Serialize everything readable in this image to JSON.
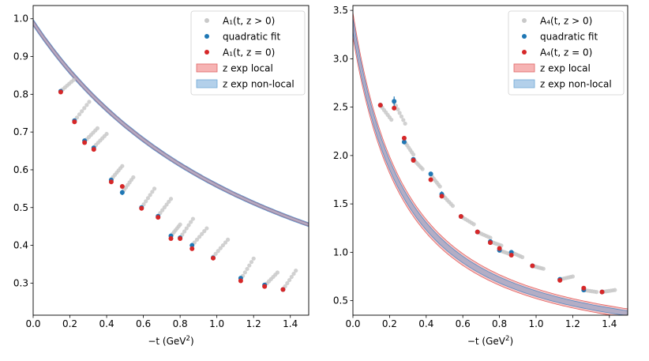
{
  "chart_data": [
    {
      "type": "scatter",
      "xlabel": "−t (GeV²)",
      "xlabel_main": "−t (GeV",
      "xlabel_sup": "2",
      "xlabel_tail": ")",
      "xlim": [
        0.0,
        1.5
      ],
      "ylim": [
        0.215,
        1.035
      ],
      "xticks": [
        "0.0",
        "0.2",
        "0.4",
        "0.6",
        "0.8",
        "1.0",
        "1.2",
        "1.4"
      ],
      "yticks": [
        "0.3",
        "0.4",
        "0.5",
        "0.6",
        "0.7",
        "0.8",
        "0.9",
        "1.0"
      ],
      "legend_position": "top-right",
      "legend": [
        {
          "label": "A₁(t, z > 0)",
          "kind": "marker",
          "color": "#c8c8c8"
        },
        {
          "label": "quadratic fit",
          "kind": "marker",
          "color": "#1f77b4"
        },
        {
          "label": "A₁(t, z = 0)",
          "kind": "marker",
          "color": "#d62728"
        },
        {
          "label": "z exp local",
          "kind": "band",
          "color": "#f4a6a6"
        },
        {
          "label": "z exp non-local",
          "kind": "band",
          "color": "#a6c8e6"
        }
      ],
      "curve": {
        "A": 0.99,
        "M2": 1.55,
        "p": 1.15,
        "local_spread": 0.004,
        "nonlocal_spread": 0.006
      },
      "gray_chains": [
        {
          "x": 0.15,
          "y": 0.808,
          "dx": 0.07,
          "dy": 0.03
        },
        {
          "x": 0.225,
          "y": 0.73,
          "dx": 0.08,
          "dy": 0.05
        },
        {
          "x": 0.28,
          "y": 0.675,
          "dx": 0.07,
          "dy": 0.035
        },
        {
          "x": 0.33,
          "y": 0.66,
          "dx": 0.07,
          "dy": 0.035
        },
        {
          "x": 0.425,
          "y": 0.575,
          "dx": 0.06,
          "dy": 0.035
        },
        {
          "x": 0.485,
          "y": 0.54,
          "dx": 0.06,
          "dy": 0.04
        },
        {
          "x": 0.59,
          "y": 0.5,
          "dx": 0.07,
          "dy": 0.05
        },
        {
          "x": 0.68,
          "y": 0.478,
          "dx": 0.07,
          "dy": 0.045
        },
        {
          "x": 0.75,
          "y": 0.425,
          "dx": 0.05,
          "dy": 0.03
        },
        {
          "x": 0.8,
          "y": 0.42,
          "dx": 0.07,
          "dy": 0.05
        },
        {
          "x": 0.865,
          "y": 0.4,
          "dx": 0.08,
          "dy": 0.045
        },
        {
          "x": 0.98,
          "y": 0.37,
          "dx": 0.08,
          "dy": 0.045
        },
        {
          "x": 1.13,
          "y": 0.31,
          "dx": 0.07,
          "dy": 0.055
        },
        {
          "x": 1.26,
          "y": 0.293,
          "dx": 0.07,
          "dy": 0.035
        },
        {
          "x": 1.36,
          "y": 0.283,
          "dx": 0.07,
          "dy": 0.05
        }
      ],
      "blue_points": [
        {
          "x": 0.15,
          "y": 0.808,
          "err": 0.004
        },
        {
          "x": 0.225,
          "y": 0.73,
          "err": 0.006
        },
        {
          "x": 0.28,
          "y": 0.677,
          "err": 0.004
        },
        {
          "x": 0.33,
          "y": 0.658,
          "err": 0.004
        },
        {
          "x": 0.425,
          "y": 0.573,
          "err": 0.006
        },
        {
          "x": 0.485,
          "y": 0.54,
          "err": 0.007
        },
        {
          "x": 0.59,
          "y": 0.5,
          "err": 0.003
        },
        {
          "x": 0.68,
          "y": 0.477,
          "err": 0.004
        },
        {
          "x": 0.75,
          "y": 0.425,
          "err": 0.004
        },
        {
          "x": 0.8,
          "y": 0.42,
          "err": 0.004
        },
        {
          "x": 0.865,
          "y": 0.4,
          "err": 0.004
        },
        {
          "x": 0.98,
          "y": 0.367,
          "err": 0.003
        },
        {
          "x": 1.13,
          "y": 0.313,
          "err": 0.003
        },
        {
          "x": 1.26,
          "y": 0.295,
          "err": 0.003
        },
        {
          "x": 1.36,
          "y": 0.283,
          "err": 0.003
        }
      ],
      "red_points": [
        {
          "x": 0.15,
          "y": 0.806
        },
        {
          "x": 0.225,
          "y": 0.727
        },
        {
          "x": 0.28,
          "y": 0.672
        },
        {
          "x": 0.33,
          "y": 0.654
        },
        {
          "x": 0.425,
          "y": 0.568
        },
        {
          "x": 0.485,
          "y": 0.556
        },
        {
          "x": 0.59,
          "y": 0.498
        },
        {
          "x": 0.68,
          "y": 0.474
        },
        {
          "x": 0.75,
          "y": 0.418
        },
        {
          "x": 0.8,
          "y": 0.418
        },
        {
          "x": 0.865,
          "y": 0.391
        },
        {
          "x": 0.98,
          "y": 0.366
        },
        {
          "x": 1.13,
          "y": 0.306
        },
        {
          "x": 1.26,
          "y": 0.291
        },
        {
          "x": 1.36,
          "y": 0.283
        }
      ]
    },
    {
      "type": "scatter",
      "xlabel": "−t (GeV²)",
      "xlabel_main": "−t (GeV",
      "xlabel_sup": "2",
      "xlabel_tail": ")",
      "xlim": [
        0.0,
        1.5
      ],
      "ylim": [
        0.35,
        3.55
      ],
      "xticks": [
        "0.0",
        "0.2",
        "0.4",
        "0.6",
        "0.8",
        "1.0",
        "1.2",
        "1.4"
      ],
      "yticks": [
        "0.5",
        "1.0",
        "1.5",
        "2.0",
        "2.5",
        "3.0",
        "3.5"
      ],
      "legend_position": "top-right",
      "legend": [
        {
          "label": "A₄(t, z > 0)",
          "kind": "marker",
          "color": "#c8c8c8"
        },
        {
          "label": "quadratic fit",
          "kind": "marker",
          "color": "#1f77b4"
        },
        {
          "label": "A₄(t, z = 0)",
          "kind": "marker",
          "color": "#d62728"
        },
        {
          "label": "z exp local",
          "kind": "band",
          "color": "#f4a6a6"
        },
        {
          "label": "z exp non-local",
          "kind": "band",
          "color": "#a6c8e6"
        }
      ],
      "curve": {
        "A": 3.35,
        "M2": 0.42,
        "p": 1.45,
        "local_spread": 0.09,
        "nonlocal_spread": 0.05
      },
      "gray_chains": [
        {
          "x": 0.15,
          "y": 2.52,
          "dx": 0.06,
          "dy": -0.15
        },
        {
          "x": 0.225,
          "y": 2.55,
          "dx": 0.06,
          "dy": -0.22
        },
        {
          "x": 0.28,
          "y": 2.15,
          "dx": 0.05,
          "dy": -0.14
        },
        {
          "x": 0.33,
          "y": 1.96,
          "dx": 0.05,
          "dy": -0.1
        },
        {
          "x": 0.425,
          "y": 1.8,
          "dx": 0.05,
          "dy": -0.12
        },
        {
          "x": 0.485,
          "y": 1.6,
          "dx": 0.06,
          "dy": -0.12
        },
        {
          "x": 0.59,
          "y": 1.37,
          "dx": 0.07,
          "dy": -0.08
        },
        {
          "x": 0.68,
          "y": 1.21,
          "dx": 0.07,
          "dy": -0.06
        },
        {
          "x": 0.75,
          "y": 1.11,
          "dx": 0.06,
          "dy": -0.04
        },
        {
          "x": 0.8,
          "y": 1.02,
          "dx": 0.06,
          "dy": -0.04
        },
        {
          "x": 0.865,
          "y": 1.0,
          "dx": 0.06,
          "dy": -0.05
        },
        {
          "x": 0.98,
          "y": 0.86,
          "dx": 0.06,
          "dy": -0.03
        },
        {
          "x": 1.13,
          "y": 0.72,
          "dx": 0.07,
          "dy": 0.03
        },
        {
          "x": 1.26,
          "y": 0.61,
          "dx": 0.07,
          "dy": -0.02
        },
        {
          "x": 1.36,
          "y": 0.59,
          "dx": 0.07,
          "dy": 0.02
        }
      ],
      "blue_points": [
        {
          "x": 0.15,
          "y": 2.52,
          "err": 0.02
        },
        {
          "x": 0.225,
          "y": 2.56,
          "err": 0.05
        },
        {
          "x": 0.28,
          "y": 2.14,
          "err": 0.02
        },
        {
          "x": 0.33,
          "y": 1.96,
          "err": 0.02
        },
        {
          "x": 0.425,
          "y": 1.81,
          "err": 0.02
        },
        {
          "x": 0.485,
          "y": 1.6,
          "err": 0.03
        },
        {
          "x": 0.59,
          "y": 1.37,
          "err": 0.01
        },
        {
          "x": 0.68,
          "y": 1.21,
          "err": 0.01
        },
        {
          "x": 0.75,
          "y": 1.11,
          "err": 0.01
        },
        {
          "x": 0.8,
          "y": 1.02,
          "err": 0.02
        },
        {
          "x": 0.865,
          "y": 1.0,
          "err": 0.01
        },
        {
          "x": 0.98,
          "y": 0.86,
          "err": 0.01
        },
        {
          "x": 1.13,
          "y": 0.72,
          "err": 0.01
        },
        {
          "x": 1.26,
          "y": 0.61,
          "err": 0.01
        },
        {
          "x": 1.36,
          "y": 0.59,
          "err": 0.01
        }
      ],
      "red_points": [
        {
          "x": 0.15,
          "y": 2.52
        },
        {
          "x": 0.225,
          "y": 2.49
        },
        {
          "x": 0.28,
          "y": 2.18
        },
        {
          "x": 0.33,
          "y": 1.95
        },
        {
          "x": 0.425,
          "y": 1.75
        },
        {
          "x": 0.485,
          "y": 1.58
        },
        {
          "x": 0.59,
          "y": 1.37
        },
        {
          "x": 0.68,
          "y": 1.21
        },
        {
          "x": 0.75,
          "y": 1.1
        },
        {
          "x": 0.8,
          "y": 1.04
        },
        {
          "x": 0.865,
          "y": 0.97
        },
        {
          "x": 0.98,
          "y": 0.86
        },
        {
          "x": 1.13,
          "y": 0.71
        },
        {
          "x": 1.26,
          "y": 0.63
        },
        {
          "x": 1.36,
          "y": 0.59
        }
      ]
    }
  ]
}
